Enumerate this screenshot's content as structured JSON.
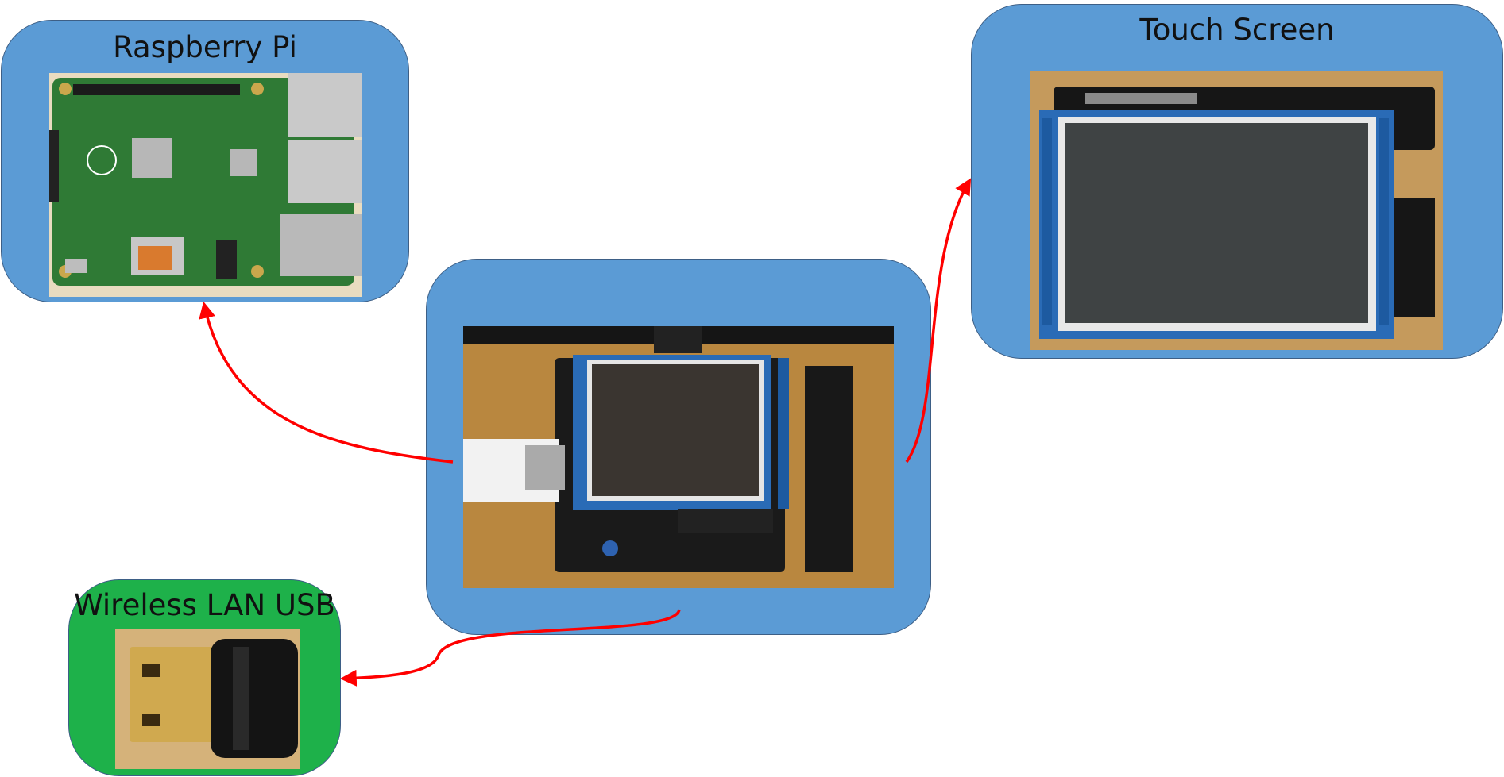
{
  "nodes": {
    "raspberry_pi": {
      "title": "Raspberry Pi"
    },
    "touch_screen": {
      "title": "Touch Screen"
    },
    "center_assembly": {
      "title": ""
    },
    "wireless_lan_usb": {
      "title": "Wireless LAN USB"
    }
  },
  "colors": {
    "box_blue": "#5b9bd5",
    "box_green": "#1eb14a",
    "box_border": "#3d5f86",
    "arrow_red": "#ff0000"
  },
  "edges": [
    {
      "from": "center_assembly",
      "to": "raspberry_pi"
    },
    {
      "from": "center_assembly",
      "to": "touch_screen"
    },
    {
      "from": "center_assembly",
      "to": "wireless_lan_usb"
    }
  ]
}
